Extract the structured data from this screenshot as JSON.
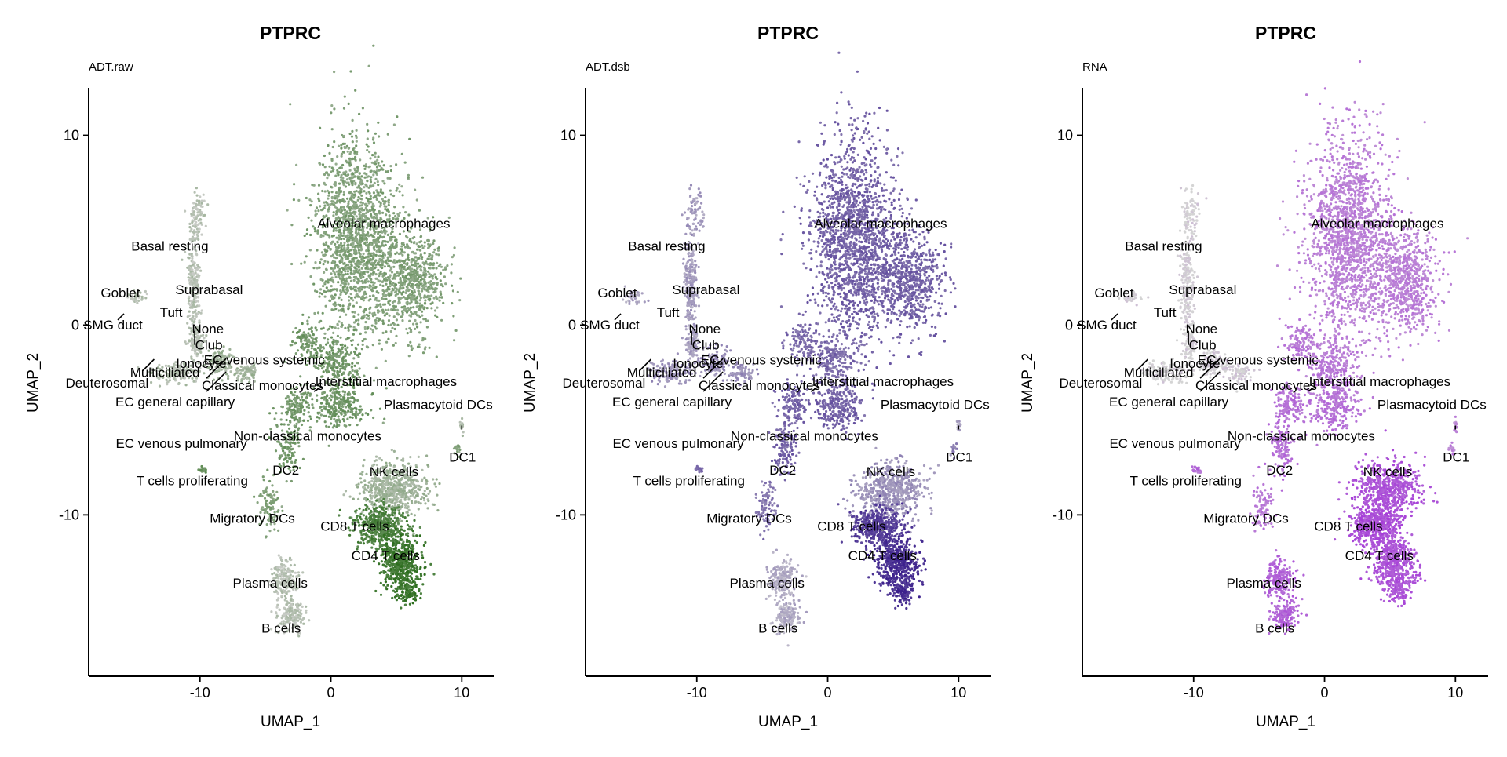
{
  "chart_data": [
    {
      "type": "scatter",
      "title": "PTPRC",
      "subtitle": "ADT.raw",
      "xlabel": "UMAP_1",
      "ylabel": "UMAP_2",
      "xlim": [
        -18.5,
        12.5
      ],
      "ylim": [
        -18.5,
        12.5
      ],
      "xticks": [
        -10,
        0,
        10
      ],
      "xtick_labels": [
        "-10",
        "0",
        "10"
      ],
      "yticks": [
        -10,
        0,
        10
      ],
      "ytick_labels": [
        "-10",
        "0",
        "10"
      ],
      "color_low": "#c8cbc6",
      "color_high": "#2d6e1e",
      "grid": false,
      "clusters": [
        {
          "label": "Basal resting",
          "x": -10.8,
          "y": 3.5,
          "expr": 0.1
        },
        {
          "label": "Suprabasal",
          "x": -10.5,
          "y": 2.0,
          "expr": 0.1
        },
        {
          "label": "Tuft",
          "x": -11.0,
          "y": 1.0,
          "expr": 0.1
        },
        {
          "label": "None",
          "x": -10.6,
          "y": 0.6,
          "expr": 0.15
        },
        {
          "label": "Goblet",
          "x": -15.0,
          "y": 1.8,
          "expr": 0.1
        },
        {
          "label": "Club",
          "x": -10.4,
          "y": -0.3,
          "expr": 0.1
        },
        {
          "label": "Ionocyte",
          "x": -10.8,
          "y": -0.8,
          "expr": 0.1
        },
        {
          "label": "SMG duct",
          "x": -15.8,
          "y": 0.6,
          "expr": 0.1
        },
        {
          "label": "Multiciliated",
          "x": -11.0,
          "y": -1.5,
          "expr": 0.15
        },
        {
          "label": "EC venous systemic",
          "x": -10.0,
          "y": -1.5,
          "expr": 0.25
        },
        {
          "label": "Deuterosomal",
          "x": -13.5,
          "y": -1.8,
          "expr": 0.15
        },
        {
          "label": "Classical monocytes",
          "x": -1.5,
          "y": -2.5,
          "expr": 0.55
        },
        {
          "label": "Interstitial macrophages",
          "x": -1.3,
          "y": -3.5,
          "expr": 0.5
        },
        {
          "label": "Plasmacytoid DCs",
          "x": 10.0,
          "y": -5.5,
          "expr": 0.15
        },
        {
          "label": "EC general capillary",
          "x": -9.5,
          "y": -2.8,
          "expr": 0.25
        },
        {
          "label": "Non-classical monocytes",
          "x": 0.5,
          "y": -5.0,
          "expr": 0.55
        },
        {
          "label": "EC venous pulmonary",
          "x": -9.5,
          "y": -3.5,
          "expr": 0.25
        },
        {
          "label": "DC2",
          "x": -3.5,
          "y": -7.0,
          "expr": 0.55
        },
        {
          "label": "DC1",
          "x": 9.7,
          "y": -6.5,
          "expr": 0.4
        },
        {
          "label": "NK cells",
          "x": 6.5,
          "y": -8.5,
          "expr": 0.25
        },
        {
          "label": "T cells proliferating",
          "x": -10.0,
          "y": -7.7,
          "expr": 0.6
        },
        {
          "label": "CD8 T cells",
          "x": 3.5,
          "y": -10.5,
          "expr": 0.8
        },
        {
          "label": "Migratory DCs",
          "x": -4.5,
          "y": -9.5,
          "expr": 0.45
        },
        {
          "label": "CD4 T cells",
          "x": 5.5,
          "y": -12.5,
          "expr": 0.9
        },
        {
          "label": "Plasma cells",
          "x": -3.8,
          "y": -13.2,
          "expr": 0.1
        },
        {
          "label": "B cells",
          "x": -3.2,
          "y": -15.5,
          "expr": 0.1
        },
        {
          "label": "Alveolar macrophages",
          "x": 2.0,
          "y": 5.5,
          "expr": 0.45
        }
      ]
    },
    {
      "type": "scatter",
      "title": "PTPRC",
      "subtitle": "ADT.dsb",
      "xlabel": "UMAP_1",
      "ylabel": "UMAP_2",
      "xlim": [
        -18.5,
        12.5
      ],
      "ylim": [
        -18.5,
        12.5
      ],
      "xticks": [
        -10,
        0,
        10
      ],
      "xtick_labels": [
        "-10",
        "0",
        "10"
      ],
      "yticks": [
        -10,
        0,
        10
      ],
      "ytick_labels": [
        "-10",
        "0",
        "10"
      ],
      "color_low": "#c9c7cf",
      "color_high": "#3b1f8c",
      "grid": false,
      "clusters": [
        {
          "label": "Basal resting",
          "x": -10.8,
          "y": 3.5,
          "expr": 0.25
        },
        {
          "label": "Suprabasal",
          "x": -10.5,
          "y": 2.0,
          "expr": 0.25
        },
        {
          "label": "Tuft",
          "x": -11.0,
          "y": 1.0,
          "expr": 0.25
        },
        {
          "label": "None",
          "x": -10.6,
          "y": 0.6,
          "expr": 0.25
        },
        {
          "label": "Goblet",
          "x": -15.0,
          "y": 1.8,
          "expr": 0.2
        },
        {
          "label": "Club",
          "x": -10.4,
          "y": -0.3,
          "expr": 0.25
        },
        {
          "label": "Ionocyte",
          "x": -10.8,
          "y": -0.8,
          "expr": 0.25
        },
        {
          "label": "SMG duct",
          "x": -15.8,
          "y": 0.6,
          "expr": 0.2
        },
        {
          "label": "Multiciliated",
          "x": -11.0,
          "y": -1.5,
          "expr": 0.3
        },
        {
          "label": "EC venous systemic",
          "x": -10.0,
          "y": -1.5,
          "expr": 0.35
        },
        {
          "label": "Deuterosomal",
          "x": -13.5,
          "y": -1.8,
          "expr": 0.3
        },
        {
          "label": "Classical monocytes",
          "x": -1.5,
          "y": -2.5,
          "expr": 0.55
        },
        {
          "label": "Interstitial macrophages",
          "x": -1.3,
          "y": -3.5,
          "expr": 0.55
        },
        {
          "label": "Plasmacytoid DCs",
          "x": 10.0,
          "y": -5.5,
          "expr": 0.2
        },
        {
          "label": "EC general capillary",
          "x": -9.5,
          "y": -2.8,
          "expr": 0.35
        },
        {
          "label": "Non-classical monocytes",
          "x": 0.5,
          "y": -5.0,
          "expr": 0.6
        },
        {
          "label": "EC venous pulmonary",
          "x": -9.5,
          "y": -3.5,
          "expr": 0.35
        },
        {
          "label": "DC2",
          "x": -3.5,
          "y": -7.0,
          "expr": 0.6
        },
        {
          "label": "DC1",
          "x": 9.7,
          "y": -6.5,
          "expr": 0.4
        },
        {
          "label": "NK cells",
          "x": 6.5,
          "y": -8.5,
          "expr": 0.3
        },
        {
          "label": "T cells proliferating",
          "x": -10.0,
          "y": -7.7,
          "expr": 0.6
        },
        {
          "label": "CD8 T cells",
          "x": 3.5,
          "y": -10.5,
          "expr": 0.8
        },
        {
          "label": "Migratory DCs",
          "x": -4.5,
          "y": -9.5,
          "expr": 0.5
        },
        {
          "label": "CD4 T cells",
          "x": 5.5,
          "y": -12.5,
          "expr": 0.9
        },
        {
          "label": "Plasma cells",
          "x": -3.8,
          "y": -13.2,
          "expr": 0.15
        },
        {
          "label": "B cells",
          "x": -3.2,
          "y": -15.5,
          "expr": 0.15
        },
        {
          "label": "Alveolar macrophages",
          "x": 2.0,
          "y": 5.5,
          "expr": 0.6
        }
      ]
    },
    {
      "type": "scatter",
      "title": "PTPRC",
      "subtitle": "RNA",
      "xlabel": "UMAP_1",
      "ylabel": "UMAP_2",
      "xlim": [
        -18.5,
        12.5
      ],
      "ylim": [
        -18.5,
        12.5
      ],
      "xticks": [
        -10,
        0,
        10
      ],
      "xtick_labels": [
        "-10",
        "0",
        "10"
      ],
      "yticks": [
        -10,
        0,
        10
      ],
      "ytick_labels": [
        "-10",
        "0",
        "10"
      ],
      "color_low": "#d4d4d4",
      "color_high": "#a63ed8",
      "grid": false,
      "clusters": [
        {
          "label": "Basal resting",
          "x": -10.8,
          "y": 3.5,
          "expr": 0.02
        },
        {
          "label": "Suprabasal",
          "x": -10.5,
          "y": 2.0,
          "expr": 0.02
        },
        {
          "label": "Tuft",
          "x": -11.0,
          "y": 1.0,
          "expr": 0.02
        },
        {
          "label": "None",
          "x": -10.6,
          "y": 0.6,
          "expr": 0.05
        },
        {
          "label": "Goblet",
          "x": -15.0,
          "y": 1.8,
          "expr": 0.02
        },
        {
          "label": "Club",
          "x": -10.4,
          "y": -0.3,
          "expr": 0.02
        },
        {
          "label": "Ionocyte",
          "x": -10.8,
          "y": -0.8,
          "expr": 0.02
        },
        {
          "label": "SMG duct",
          "x": -15.8,
          "y": 0.6,
          "expr": 0.02
        },
        {
          "label": "Multiciliated",
          "x": -11.0,
          "y": -1.5,
          "expr": 0.02
        },
        {
          "label": "EC venous systemic",
          "x": -10.0,
          "y": -1.5,
          "expr": 0.05
        },
        {
          "label": "Deuterosomal",
          "x": -13.5,
          "y": -1.8,
          "expr": 0.02
        },
        {
          "label": "Classical monocytes",
          "x": -1.5,
          "y": -2.5,
          "expr": 0.6
        },
        {
          "label": "Interstitial macrophages",
          "x": -1.3,
          "y": -3.5,
          "expr": 0.6
        },
        {
          "label": "Plasmacytoid DCs",
          "x": 10.0,
          "y": -5.5,
          "expr": 0.5
        },
        {
          "label": "EC general capillary",
          "x": -9.5,
          "y": -2.8,
          "expr": 0.05
        },
        {
          "label": "Non-classical monocytes",
          "x": 0.5,
          "y": -5.0,
          "expr": 0.65
        },
        {
          "label": "EC venous pulmonary",
          "x": -9.5,
          "y": -3.5,
          "expr": 0.05
        },
        {
          "label": "DC2",
          "x": -3.5,
          "y": -7.0,
          "expr": 0.65
        },
        {
          "label": "DC1",
          "x": 9.7,
          "y": -6.5,
          "expr": 0.55
        },
        {
          "label": "NK cells",
          "x": 6.5,
          "y": -8.5,
          "expr": 0.85
        },
        {
          "label": "T cells proliferating",
          "x": -10.0,
          "y": -7.7,
          "expr": 0.7
        },
        {
          "label": "CD8 T cells",
          "x": 3.5,
          "y": -10.5,
          "expr": 0.9
        },
        {
          "label": "Migratory DCs",
          "x": -4.5,
          "y": -9.5,
          "expr": 0.6
        },
        {
          "label": "CD4 T cells",
          "x": 5.5,
          "y": -12.5,
          "expr": 0.85
        },
        {
          "label": "Plasma cells",
          "x": -3.8,
          "y": -13.2,
          "expr": 0.75
        },
        {
          "label": "B cells",
          "x": -3.2,
          "y": -15.5,
          "expr": 0.75
        },
        {
          "label": "Alveolar macrophages",
          "x": 2.0,
          "y": 5.5,
          "expr": 0.55
        }
      ]
    }
  ]
}
